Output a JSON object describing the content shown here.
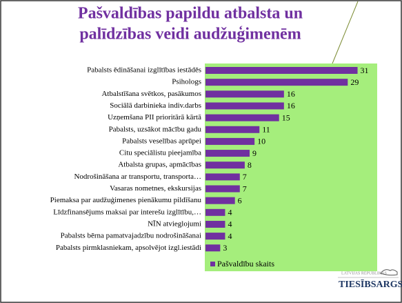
{
  "chart_data": {
    "type": "bar",
    "title": [
      "Pašvaldības papildu atbalsta un",
      "palīdzības veidi audžuģimenēm"
    ],
    "categories": [
      "Pabalsts ēdināšanai izglītības iestādēs",
      "Psihologs",
      "Atbalstīšana svētkos, pasākumos",
      "Sociālā darbinieka indiv.darbs",
      "Uzņemšana PII prioritārā kārtā",
      "Pabalsts, uzsākot mācību gadu",
      "Pabalsts veselības aprūpei",
      "Citu speciālistu pieejamība",
      "Atbalsta grupas, apmācības",
      "Nodrošināšana ar transportu, transporta…",
      "Vasaras nometnes, ekskursijas",
      "Piemaksa par audžuģimenes pienākumu pildīšanu",
      "Līdzfinansējums maksai par interešu izglītību,…",
      "NĪN atvieglojumi",
      "Pabalsts bērna pamatvajadzību nodrošināšanai",
      "Pabalsts pirmklasniekam, apsolvējot izgl.iestādi"
    ],
    "series": [
      {
        "name": "Pašvaldību skaits",
        "color": "#7030a0",
        "values": [
          31,
          29,
          16,
          16,
          15,
          11,
          10,
          9,
          8,
          7,
          7,
          6,
          4,
          4,
          4,
          3
        ]
      }
    ],
    "xlim": [
      0,
      35
    ],
    "plot_color": "#a5ee7c",
    "logo": {
      "top": "LATVIJAS REPUBLIKAS",
      "name": "TIESĪBSARGS"
    }
  }
}
